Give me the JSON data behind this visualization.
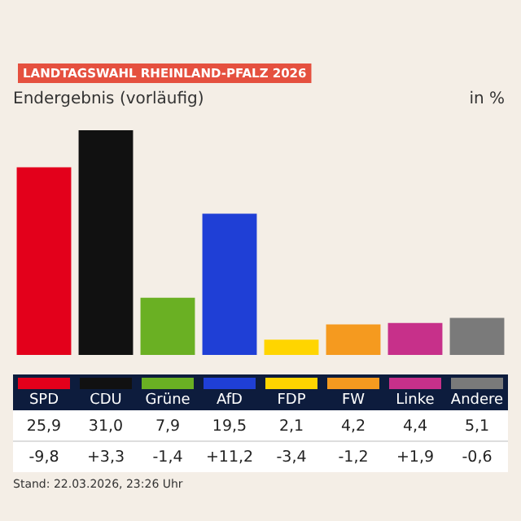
{
  "chart_data": {
    "type": "bar",
    "title": "LANDTAGSWAHL RHEINLAND-PFALZ 2026",
    "subtitle": "Endergebnis (vorläufig)",
    "ylabel": "in %",
    "categories": [
      "SPD",
      "CDU",
      "Grüne",
      "AfD",
      "FDP",
      "FW",
      "Linke",
      "Andere"
    ],
    "values": [
      25.9,
      31.0,
      7.9,
      19.5,
      2.1,
      4.2,
      4.4,
      5.1
    ],
    "colors": [
      "#e3001b",
      "#111111",
      "#6ab023",
      "#1f3fd6",
      "#ffd500",
      "#f59a1f",
      "#c7308a",
      "#7a7a7a"
    ],
    "value_labels": [
      "25,9",
      "31,0",
      "7,9",
      "19,5",
      "2,1",
      "4,2",
      "4,4",
      "5,1"
    ],
    "annotations": [
      "-9,8",
      "+3,3",
      "-1,4",
      "+11,2",
      "-3,4",
      "-1,2",
      "+1,9",
      "-0,6",
      "Stand: 22.03.2026, 23:26 Uhr"
    ]
  }
}
